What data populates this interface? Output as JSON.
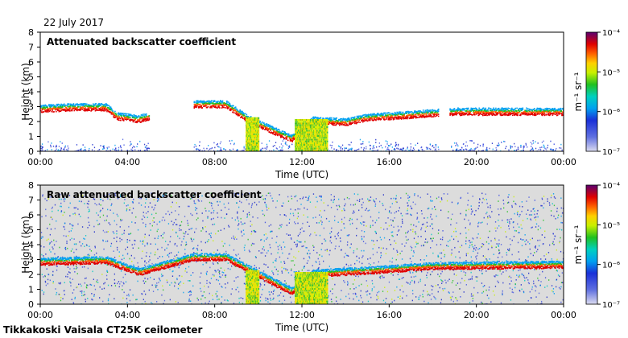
{
  "header": {
    "date": "22 July 2017"
  },
  "footer": {
    "instrument": "Tikkakoski Vaisala CT25K ceilometer"
  },
  "chart_data": [
    {
      "type": "heatmap",
      "title": "Attenuated backscatter coefficient",
      "xlabel": "Time (UTC)",
      "ylabel": "Height (km)",
      "xlim": [
        "00:00",
        "00:00"
      ],
      "ylim": [
        0,
        8
      ],
      "x_ticks": [
        "00:00",
        "04:00",
        "08:00",
        "12:00",
        "16:00",
        "20:00",
        "00:00"
      ],
      "y_ticks": [
        "0",
        "1",
        "2",
        "3",
        "4",
        "5",
        "6",
        "7",
        "8"
      ],
      "colorbar": {
        "unit": "m⁻¹ sr⁻¹",
        "scale": "log",
        "ticks": [
          "10⁻⁷",
          "10⁻⁶",
          "10⁻⁵",
          "10⁻⁴"
        ],
        "range": [
          1e-07,
          0.0001
        ]
      },
      "cloud_base_km": [
        {
          "time": "00:00",
          "height": 2.8
        },
        {
          "time": "01:30",
          "height": 2.9
        },
        {
          "time": "03:00",
          "height": 2.9
        },
        {
          "time": "03:30",
          "height": 2.3
        },
        {
          "time": "04:30",
          "height": 2.1
        },
        {
          "time": "07:00",
          "height": 3.1
        },
        {
          "time": "08:30",
          "height": 3.1
        },
        {
          "time": "09:30",
          "height": 2.1
        },
        {
          "time": "11:30",
          "height": 0.8
        },
        {
          "time": "12:30",
          "height": 2.0
        },
        {
          "time": "14:00",
          "height": 1.9
        },
        {
          "time": "15:00",
          "height": 2.2
        },
        {
          "time": "18:00",
          "height": 2.5
        },
        {
          "time": "19:00",
          "height": 2.6
        },
        {
          "time": "23:59",
          "height": 2.6
        }
      ],
      "gaps": [
        {
          "from": "05:00",
          "to": "07:00"
        },
        {
          "from": "18:15",
          "to": "18:45"
        }
      ]
    },
    {
      "type": "heatmap",
      "title": "Raw attenuated backscatter coefficient",
      "xlabel": "Time (UTC)",
      "ylabel": "Height (km)",
      "xlim": [
        "00:00",
        "00:00"
      ],
      "ylim": [
        0,
        8
      ],
      "x_ticks": [
        "00:00",
        "04:00",
        "08:00",
        "12:00",
        "16:00",
        "20:00",
        "00:00"
      ],
      "y_ticks": [
        "0",
        "1",
        "2",
        "3",
        "4",
        "5",
        "6",
        "7",
        "8"
      ],
      "colorbar": {
        "unit": "m⁻¹ sr⁻¹",
        "scale": "log",
        "ticks": [
          "10⁻⁷",
          "10⁻⁶",
          "10⁻⁵",
          "10⁻⁴"
        ],
        "range": [
          1e-07,
          0.0001
        ]
      },
      "cloud_base_km": [
        {
          "time": "00:00",
          "height": 2.8
        },
        {
          "time": "03:00",
          "height": 2.9
        },
        {
          "time": "04:30",
          "height": 2.1
        },
        {
          "time": "07:00",
          "height": 3.1
        },
        {
          "time": "08:30",
          "height": 3.1
        },
        {
          "time": "11:30",
          "height": 0.8
        },
        {
          "time": "12:30",
          "height": 2.0
        },
        {
          "time": "15:00",
          "height": 2.2
        },
        {
          "time": "18:00",
          "height": 2.5
        },
        {
          "time": "23:59",
          "height": 2.6
        }
      ]
    }
  ]
}
